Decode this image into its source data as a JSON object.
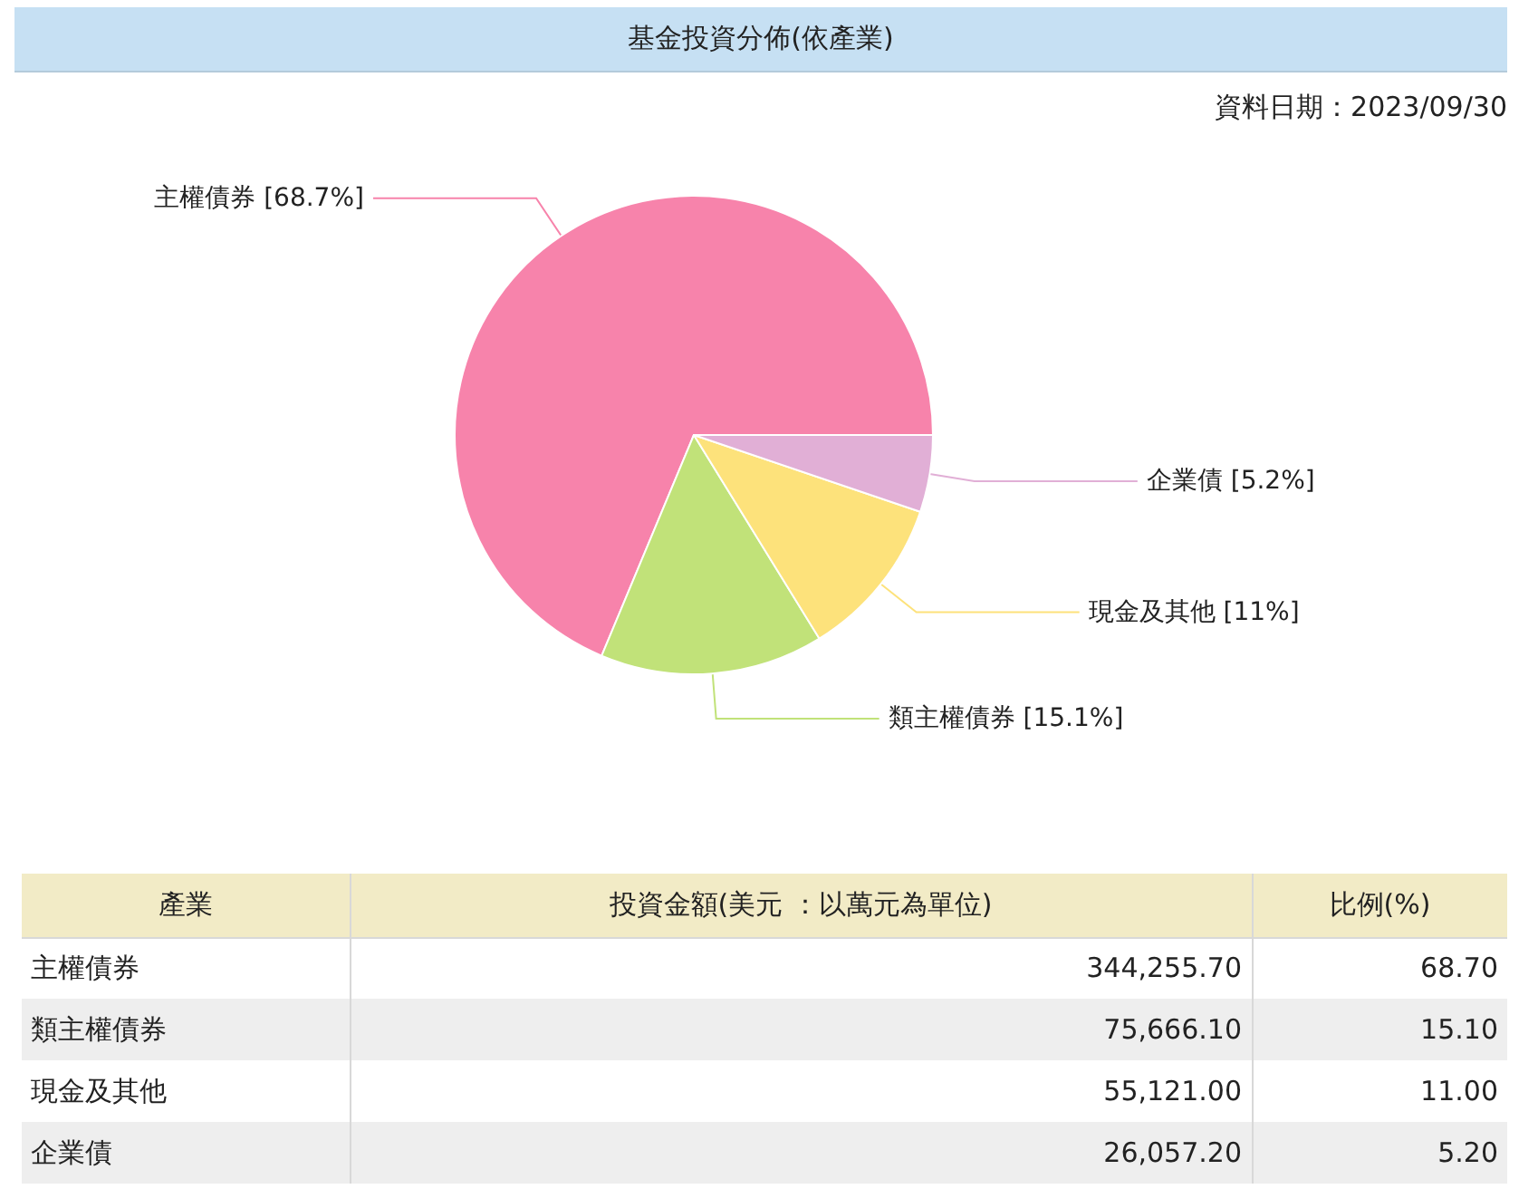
{
  "chart_data": [
    {
      "type": "pie",
      "title": "基金投資分佈(依產業)",
      "annotations": [
        "資料日期：2023/09/30"
      ],
      "categories": [
        "主權債券",
        "類主權債券",
        "現金及其他",
        "企業債"
      ],
      "values": [
        68.7,
        15.1,
        11,
        5.2
      ],
      "value_labels": [
        "[68.7%]",
        "[15.1%]",
        "[11%]",
        "[5.2%]"
      ],
      "colors": [
        "#f783ab",
        "#c1e279",
        "#fde27b",
        "#e1afd6"
      ]
    },
    {
      "type": "other",
      "ylabel": "產業",
      "categories": [
        "主權債券",
        "類主權債券",
        "現金及其他",
        "企業債"
      ],
      "series": [
        {
          "name": "投資金額(美元 ：以萬元為單位)",
          "colors": [
            "#ffffff",
            "#eeeeee",
            "#ffffff",
            "#eeeeee"
          ],
          "values": [
            344255.7,
            75666.1,
            55121,
            26057.2
          ],
          "value_labels": [
            "344,255.70",
            "75,666.10",
            "55,121.00",
            "26,057.20"
          ]
        },
        {
          "name": "比例(%)",
          "colors": [
            "#ffffff",
            "#eeeeee",
            "#ffffff",
            "#eeeeee"
          ],
          "values": [
            68.7,
            15.1,
            11,
            5.2
          ],
          "value_labels": [
            "68.70",
            "15.10",
            "11.00",
            "5.20"
          ]
        }
      ]
    }
  ]
}
